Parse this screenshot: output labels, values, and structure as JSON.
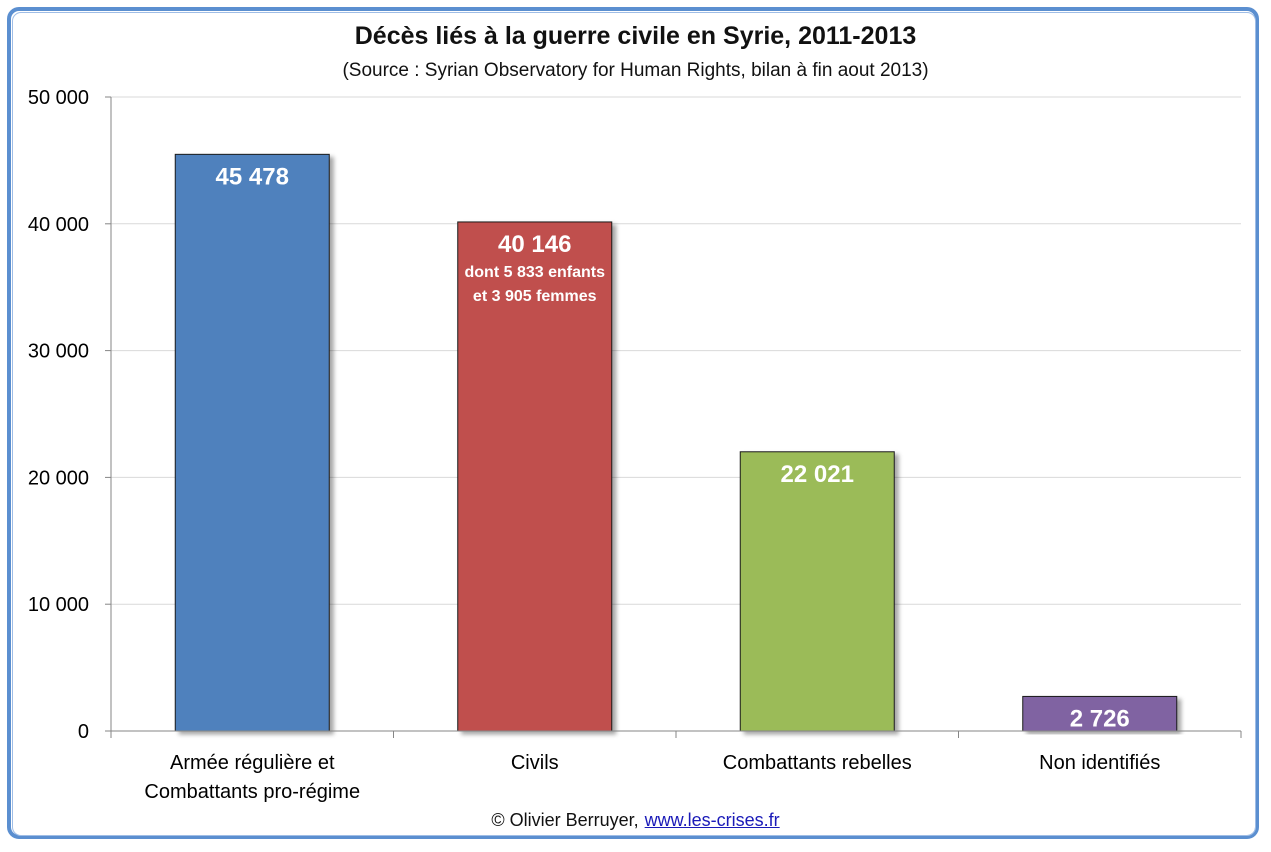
{
  "chart_data": {
    "type": "bar",
    "title": "Décès liés à la guerre civile en Syrie, 2011-2013",
    "subtitle": "(Source : Syrian Observatory for Human Rights, bilan à fin aout 2013)",
    "categories": [
      [
        "Armée régulière et",
        "Combattants pro-régime"
      ],
      [
        "Civils"
      ],
      [
        "Combattants rebelles"
      ],
      [
        "Non identifiés"
      ]
    ],
    "values": [
      45478,
      40146,
      22021,
      2726
    ],
    "value_labels": [
      "45 478",
      "40 146",
      "22 021",
      "2 726"
    ],
    "annotations": [
      {
        "category_index": 1,
        "lines": [
          "dont 5 833 enfants",
          "et 3 905 femmes"
        ]
      }
    ],
    "colors": [
      "#4f81bd",
      "#c0504d",
      "#9bbb59",
      "#8064a2"
    ],
    "ylim": [
      0,
      50000
    ],
    "yticks": [
      0,
      10000,
      20000,
      30000,
      40000,
      50000
    ],
    "ytick_labels": [
      "0",
      "10 000",
      "20 000",
      "30 000",
      "40 000",
      "50 000"
    ],
    "grid": true,
    "xlabel": "",
    "ylabel": ""
  },
  "footer": {
    "credit": "© Olivier Berruyer,",
    "link": "www.les-crises.fr"
  }
}
